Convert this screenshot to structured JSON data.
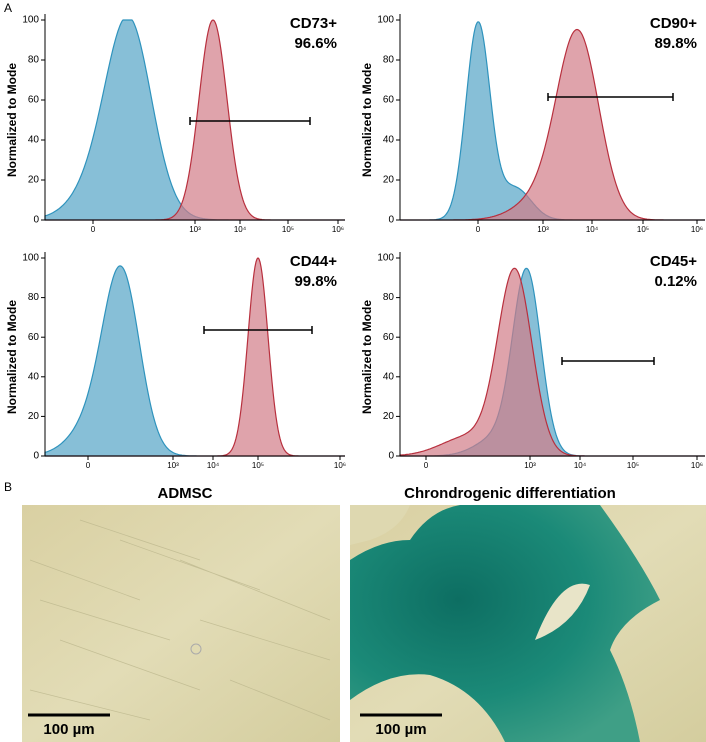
{
  "panel_labels": [
    "A",
    "B"
  ],
  "flow": {
    "y_axis_label": "Normalized to Mode",
    "panels": [
      {
        "marker": "CD73+",
        "percent": "96.6%",
        "yticks": [
          0,
          20,
          40,
          60,
          80,
          100
        ],
        "xticks": [
          "0",
          "10³",
          "10⁴",
          "10⁵",
          "10⁶"
        ]
      },
      {
        "marker": "CD90+",
        "percent": "89.8%",
        "yticks": [
          0,
          20,
          40,
          60,
          80,
          100
        ],
        "xticks": [
          "0",
          "10³",
          "10⁴",
          "10⁵",
          "10⁶"
        ]
      },
      {
        "marker": "CD44+",
        "percent": "99.8%",
        "yticks": [
          0,
          20,
          40,
          60,
          80,
          100
        ],
        "xticks": [
          "0",
          "10³",
          "10⁴",
          "10⁵",
          "10⁶"
        ]
      },
      {
        "marker": "CD45+",
        "percent": "0.12%",
        "yticks": [
          0,
          20,
          40,
          60,
          80,
          100
        ],
        "xticks": [
          "0",
          "10³",
          "10⁴",
          "10⁵",
          "10⁶"
        ]
      }
    ]
  },
  "micrographs": [
    {
      "title": "ADMSC",
      "scale_bar": "100 µm"
    },
    {
      "title": "Chrondrogenic differentiation",
      "scale_bar": "100 µm"
    }
  ]
}
